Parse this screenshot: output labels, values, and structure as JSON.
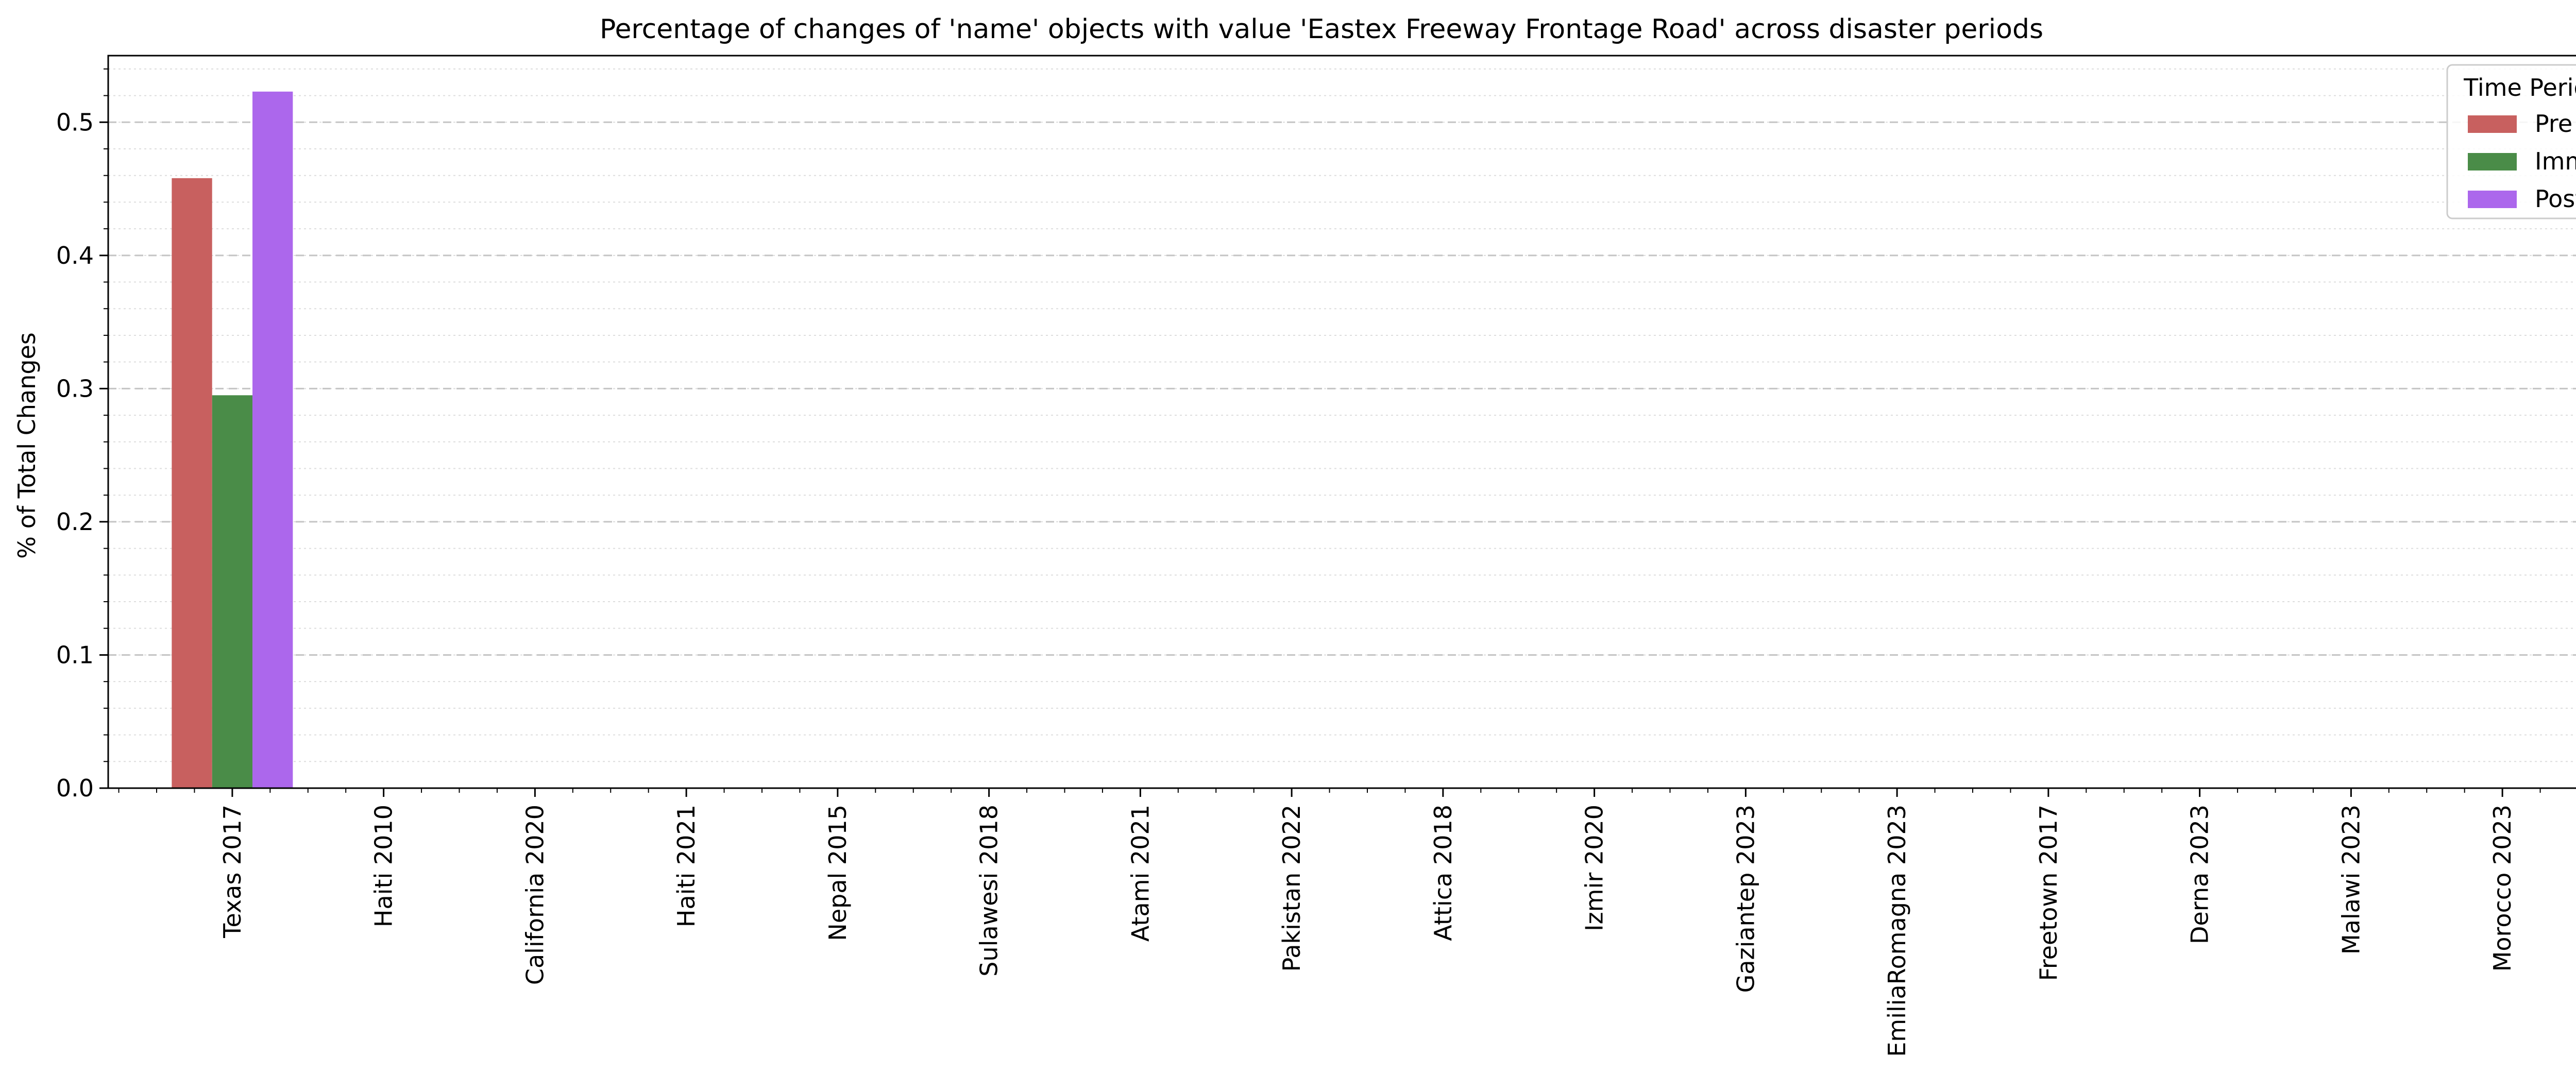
{
  "chart_data": {
    "type": "bar",
    "title": "Percentage of changes of 'name' objects with value 'Eastex Freeway Frontage Road' across disaster periods",
    "xlabel": "",
    "ylabel": "% of Total Changes",
    "ylim": [
      0,
      0.55
    ],
    "yticks": [
      "0.0",
      "0.1",
      "0.2",
      "0.3",
      "0.4",
      "0.5"
    ],
    "grid": true,
    "legend_title": "Time Period",
    "legend_position": "top-right",
    "categories": [
      "Texas 2017",
      "Haiti 2010",
      "California 2020",
      "Haiti 2021",
      "Nepal 2015",
      "Sulawesi 2018",
      "Atami 2021",
      "Pakistan 2022",
      "Attica 2018",
      "Izmir 2020",
      "Gaziantep 2023",
      "EmiliaRomagna 2023",
      "Freetown 2017",
      "Derna 2023",
      "Malawi 2023",
      "Morocco 2023"
    ],
    "series": [
      {
        "name": "Pre",
        "color": "#c8605f",
        "values": [
          0.458,
          0,
          0,
          0,
          0,
          0,
          0,
          0,
          0,
          0,
          0,
          0,
          0,
          0,
          0,
          0
        ]
      },
      {
        "name": "Imm",
        "color": "#4a8c48",
        "values": [
          0.295,
          0,
          0,
          0,
          0,
          0,
          0,
          0,
          0,
          0,
          0,
          0,
          0,
          0,
          0,
          0
        ]
      },
      {
        "name": "Post",
        "color": "#ac67ec",
        "values": [
          0.523,
          0,
          0,
          0,
          0,
          0,
          0,
          0,
          0,
          0,
          0,
          0,
          0,
          0,
          0,
          0
        ]
      }
    ]
  }
}
